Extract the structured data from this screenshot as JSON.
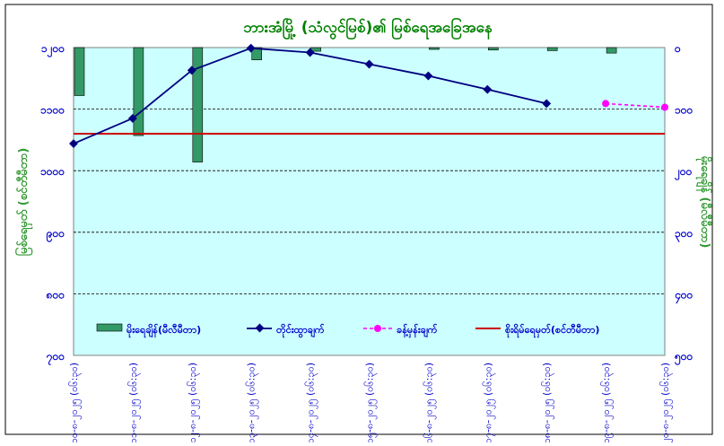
{
  "chart_data": {
    "type": "bar+line",
    "title": "ဘားအံမြို့ (သံလွင်မြစ်)၏ မြစ်ရေအခြေအနေ",
    "ylabel_left": "မြစ်ရေမှတ် (စင်တီမီတာ)",
    "ylabel_right": "မိုးရေချိန် (မီလီမီတာ)",
    "categories": [
      "၁၀-၈-၂၀၂၅ (၀၆:၃၀)",
      "၁၁-၈-၂၀၂၅ (၀၆:၃၀)",
      "၁၂-၈-၂၀၂၅ (၀၆:၃၀)",
      "၁၃-၈-၂၀၂၅ (၀၆:၃၀)",
      "၁၄-၈-၂၀၂၅ (၀၆:၃၀)",
      "၁၅-၈-၂၀၂၅ (၀၆:၃၀)",
      "၁၆-၈-၂၀၂၅ (၀၆:၃၀)",
      "၁၇-၈-၂၀၂၅ (၀၆:၃၀)",
      "၁၈-၈-၂၀၂၅ (၀၆:၃၀)",
      "၁၉-၈-၂၀၂၅ (၀၆:၃၀)",
      "၂၀-၈-၂၀၂၅ (၀၆:၃၀)"
    ],
    "left_axis": {
      "min": 700,
      "max": 1200,
      "step": 100,
      "ticks": [
        "၇၀၀",
        "၈၀၀",
        "၉၀၀",
        "၁၀၀၀",
        "၁၁၀၀",
        "၁၂၀၀"
      ]
    },
    "right_axis": {
      "min": 0,
      "max": 500,
      "step": 100,
      "reversed": true,
      "ticks": [
        "၀",
        "၁၀၀",
        "၂၀၀",
        "၃၀၀",
        "၄၀၀",
        "၅၀၀"
      ]
    },
    "series": [
      {
        "name": "မိုးရေချိန်(မီလီမီတာ)",
        "type": "bar",
        "axis": "right",
        "color": "#339966",
        "values": [
          78,
          143,
          186,
          20,
          6,
          0,
          3,
          4,
          5,
          9,
          0
        ]
      },
      {
        "name": "တိုင်းထွာချက်",
        "type": "line",
        "axis": "left",
        "color": "#000080",
        "values": [
          1044,
          1085,
          1163,
          1199,
          1192,
          1173,
          1154,
          1132,
          1109,
          null,
          null
        ]
      },
      {
        "name": "ခန့်မှန်းချက်",
        "type": "line-dashed",
        "axis": "left",
        "color": "#ff00ff",
        "values": [
          null,
          null,
          null,
          null,
          null,
          null,
          null,
          null,
          null,
          1109,
          1103
        ]
      },
      {
        "name": "စိုးရိမ်ရေမှတ်(စင်တီမီတာ)",
        "type": "hline",
        "axis": "left",
        "color": "#cc0000",
        "value": 1060
      }
    ],
    "colors": {
      "plot_bg": "#ccffff",
      "title": "#008000",
      "axis_text": "#0000cc",
      "left_label": "#339933",
      "right_label": "#339933"
    },
    "grid": true,
    "legend_position": "inside-bottom"
  }
}
